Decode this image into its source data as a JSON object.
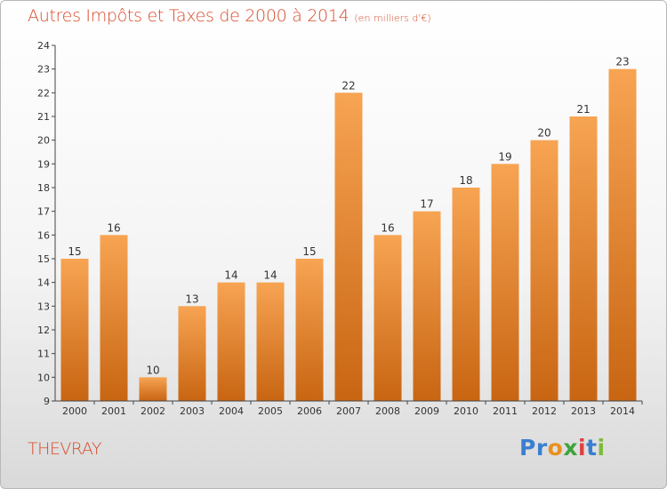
{
  "title": "Autres Impôts et Taxes de 2000 à 2014",
  "subtitle": "(en milliers d'€)",
  "commune": "THEVRAY",
  "logo": {
    "letters": [
      "P",
      "r",
      "o",
      "x",
      "i",
      "t",
      "i"
    ],
    "colors": [
      "#3b7fd0",
      "#3b7fd0",
      "#e8901f",
      "#3fa33a",
      "#e04040",
      "#3b7fd0",
      "#7cba3b"
    ]
  },
  "colors": {
    "bar_light": "#f7a453",
    "bar_dark": "#c86512",
    "title": "#d84a2a"
  },
  "chart_data": {
    "type": "bar",
    "title": "Autres Impôts et Taxes de 2000 à 2014",
    "subtitle": "(en milliers d'€)",
    "xlabel": "",
    "ylabel": "",
    "categories": [
      "2000",
      "2001",
      "2002",
      "2003",
      "2004",
      "2005",
      "2006",
      "2007",
      "2008",
      "2009",
      "2010",
      "2011",
      "2012",
      "2013",
      "2014"
    ],
    "values": [
      15,
      16,
      10,
      13,
      14,
      14,
      15,
      22,
      16,
      17,
      18,
      19,
      20,
      21,
      23
    ],
    "ylim": [
      9,
      24
    ],
    "yticks": [
      9,
      10,
      11,
      12,
      13,
      14,
      15,
      16,
      17,
      18,
      19,
      20,
      21,
      22,
      23,
      24
    ],
    "grid": false,
    "data_labels": true
  }
}
